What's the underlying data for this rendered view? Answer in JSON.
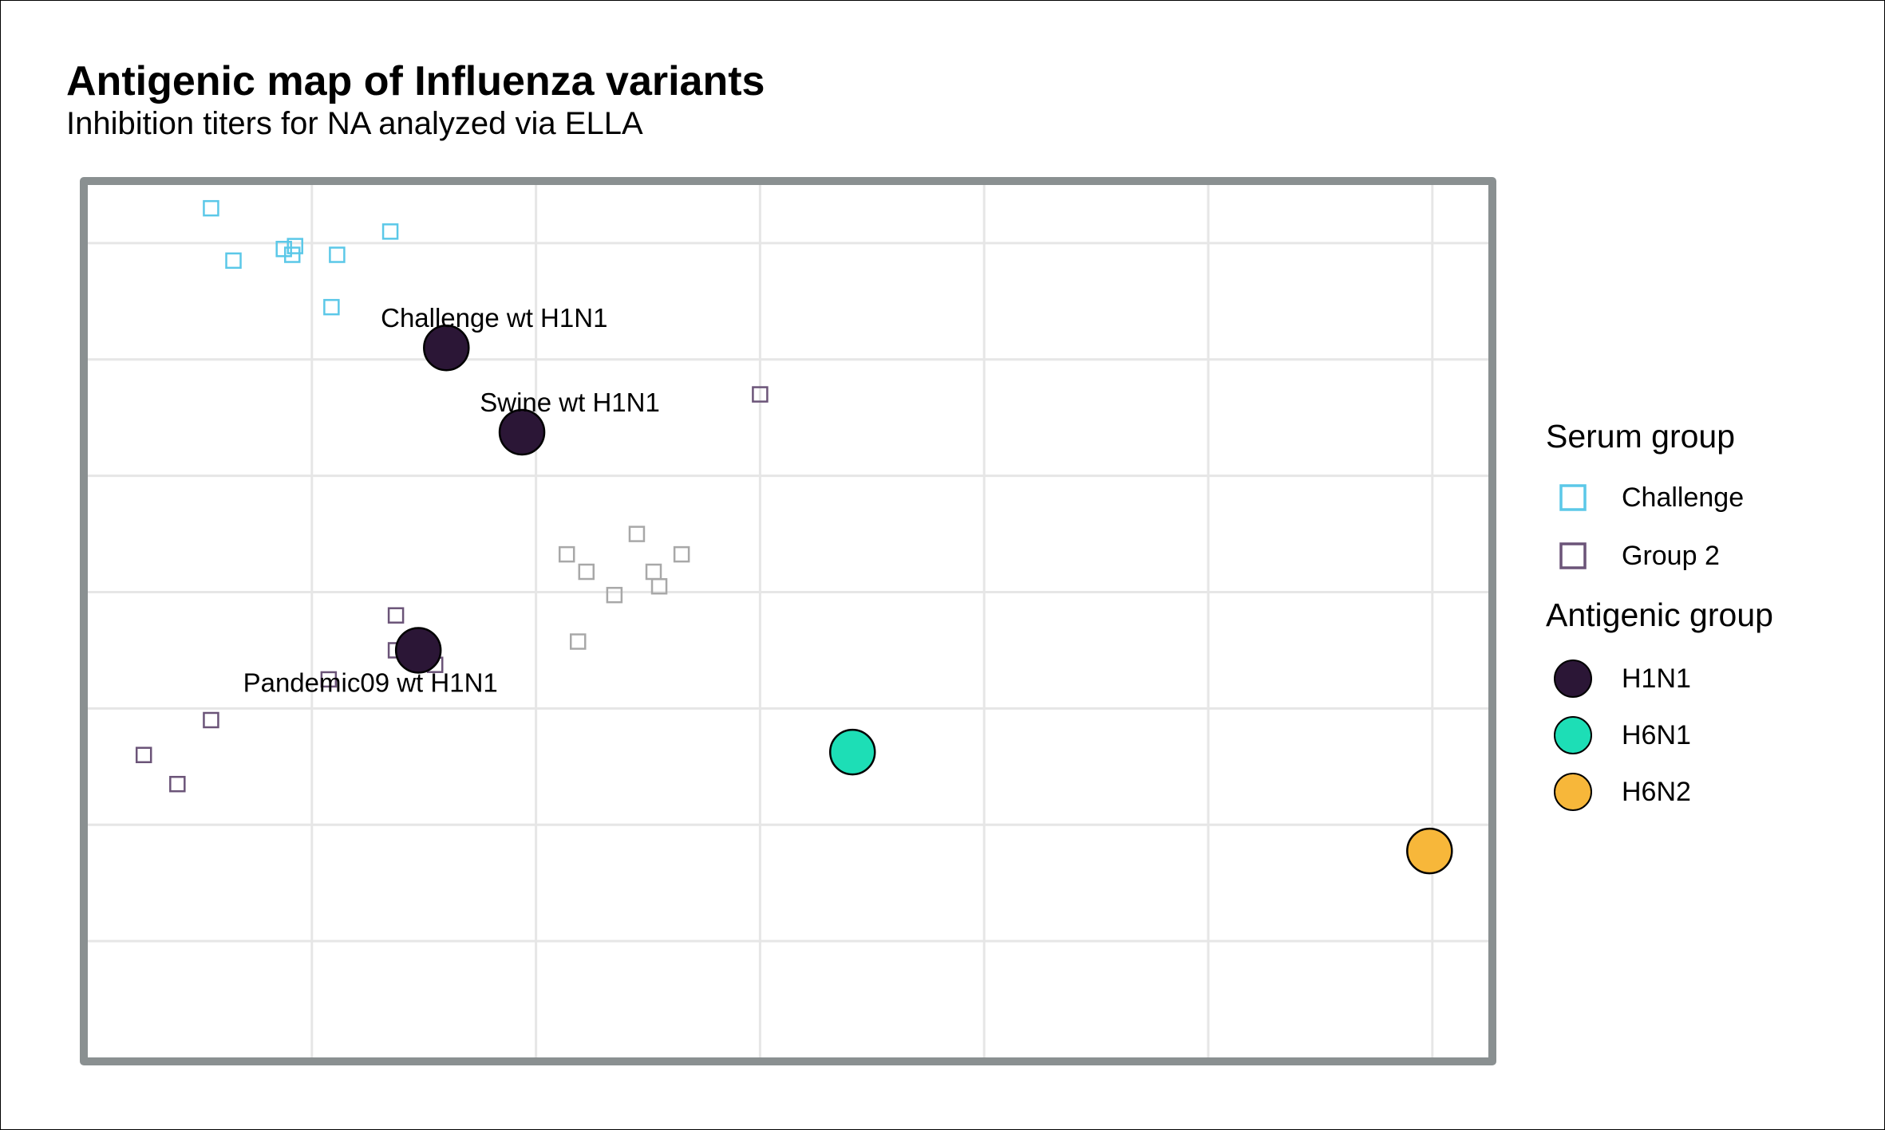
{
  "chart_data": {
    "type": "scatter",
    "title": "Antigenic map of Influenza variants",
    "subtitle": "Inhibition titers for NA analyzed via ELLA",
    "xlabel": "",
    "ylabel": "",
    "xlim": [
      0,
      25
    ],
    "ylim": [
      0,
      15
    ],
    "grid": true,
    "legend_position": "right",
    "series": [
      {
        "name": "Challenge",
        "legend_group": "Serum group",
        "marker": "open-square",
        "color": "#5bc8e8",
        "points": [
          {
            "x": 2.2,
            "y": 14.6
          },
          {
            "x": 5.4,
            "y": 14.2
          },
          {
            "x": 2.6,
            "y": 13.7
          },
          {
            "x": 3.5,
            "y": 13.9
          },
          {
            "x": 3.7,
            "y": 13.95
          },
          {
            "x": 3.65,
            "y": 13.8
          },
          {
            "x": 4.45,
            "y": 13.8
          },
          {
            "x": 4.35,
            "y": 12.9
          }
        ]
      },
      {
        "name": "Group 2",
        "legend_group": "Serum group",
        "marker": "open-square",
        "color": "#6b5478",
        "points": [
          {
            "x": 12.0,
            "y": 11.4
          },
          {
            "x": 5.5,
            "y": 7.6
          },
          {
            "x": 5.5,
            "y": 7.0
          },
          {
            "x": 6.2,
            "y": 6.75
          },
          {
            "x": 4.3,
            "y": 6.5
          },
          {
            "x": 2.2,
            "y": 5.8
          },
          {
            "x": 1.0,
            "y": 5.2
          },
          {
            "x": 1.6,
            "y": 4.7
          }
        ]
      },
      {
        "name": "",
        "marker": "open-square",
        "color": "#a8a8a8",
        "points": [
          {
            "x": 9.8,
            "y": 9.0
          },
          {
            "x": 8.55,
            "y": 8.65
          },
          {
            "x": 10.6,
            "y": 8.65
          },
          {
            "x": 8.9,
            "y": 8.35
          },
          {
            "x": 10.1,
            "y": 8.35
          },
          {
            "x": 10.2,
            "y": 8.1
          },
          {
            "x": 9.4,
            "y": 7.95
          },
          {
            "x": 8.75,
            "y": 7.15
          }
        ]
      },
      {
        "name": "H1N1",
        "legend_group": "Antigenic group",
        "marker": "filled-circle",
        "color": "#2b1636",
        "points": [
          {
            "x": 6.4,
            "y": 12.2,
            "label": "Challenge wt H1N1"
          },
          {
            "x": 7.75,
            "y": 10.75,
            "label": "Swine wt H1N1"
          },
          {
            "x": 5.9,
            "y": 7.0,
            "label": "Pandemic09 wt H1N1"
          }
        ]
      },
      {
        "name": "H6N1",
        "legend_group": "Antigenic group",
        "marker": "filled-circle",
        "color": "#1ddeb6",
        "points": [
          {
            "x": 13.65,
            "y": 5.25
          }
        ]
      },
      {
        "name": "H6N2",
        "legend_group": "Antigenic group",
        "marker": "filled-circle",
        "color": "#f7b73a",
        "points": [
          {
            "x": 23.95,
            "y": 3.55
          }
        ]
      }
    ]
  },
  "legend": {
    "serum_group_title": "Serum group",
    "serum_group_items": [
      "Challenge",
      "Group 2"
    ],
    "antigenic_group_title": "Antigenic group",
    "antigenic_group_items": [
      "H1N1",
      "H6N1",
      "H6N2"
    ]
  },
  "colors": {
    "panel_border": "#8a9091",
    "grid": "#e6e6e6",
    "challenge": "#5bc8e8",
    "group2": "#6b5478",
    "other": "#a8a8a8",
    "H1N1": "#2b1636",
    "H6N1": "#1ddeb6",
    "H6N2": "#f7b73a"
  }
}
